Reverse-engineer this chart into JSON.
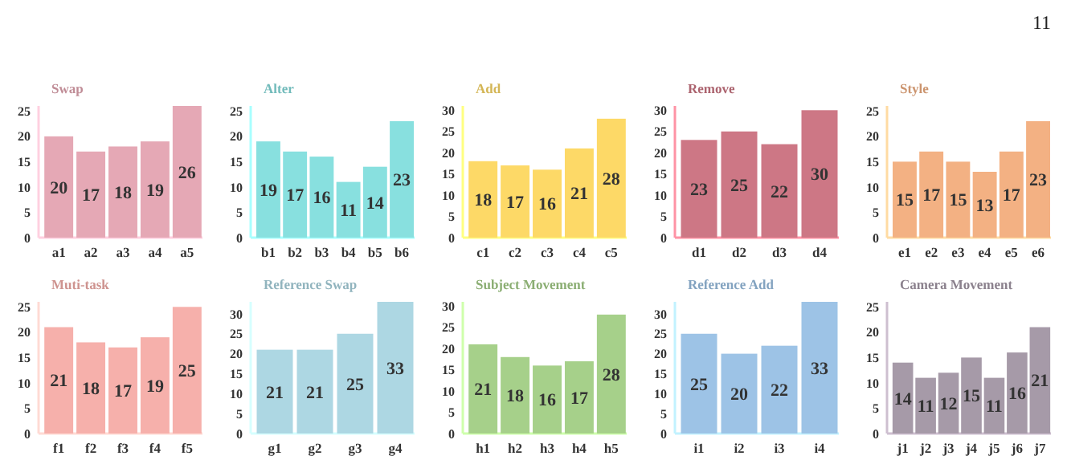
{
  "chart_data": [
    {
      "type": "bar",
      "title": "Swap",
      "categories": [
        "a1",
        "a2",
        "a3",
        "a4",
        "a5"
      ],
      "values": [
        20,
        17,
        18,
        19,
        26
      ],
      "color": "#e5a8b5",
      "ylim": [
        0,
        26
      ],
      "yticks": [
        0,
        5,
        10,
        15,
        20,
        25
      ],
      "data_labels": true,
      "annotations": [
        "11"
      ]
    },
    {
      "type": "bar",
      "title": "Alter",
      "categories": [
        "b1",
        "b2",
        "b3",
        "b4",
        "b5",
        "b6"
      ],
      "values": [
        19,
        17,
        16,
        11,
        14,
        23
      ],
      "color": "#88e0df",
      "ylim": [
        0,
        26
      ],
      "yticks": [
        0,
        5,
        10,
        15,
        20,
        25
      ],
      "data_labels": true
    },
    {
      "type": "bar",
      "title": "Add",
      "categories": [
        "c1",
        "c2",
        "c3",
        "c4",
        "c5"
      ],
      "values": [
        18,
        17,
        16,
        21,
        28
      ],
      "color": "#fdd967",
      "ylim": [
        0,
        31
      ],
      "yticks": [
        0,
        5,
        10,
        15,
        20,
        25,
        30
      ],
      "data_labels": true
    },
    {
      "type": "bar",
      "title": "Remove",
      "categories": [
        "d1",
        "d2",
        "d3",
        "d4"
      ],
      "values": [
        23,
        25,
        22,
        30
      ],
      "color": "#cd7785",
      "ylim": [
        0,
        31
      ],
      "yticks": [
        0,
        5,
        10,
        15,
        20,
        25,
        30
      ],
      "data_labels": true
    },
    {
      "type": "bar",
      "title": "Style",
      "categories": [
        "e1",
        "e2",
        "e3",
        "e4",
        "e5",
        "e6"
      ],
      "values": [
        15,
        17,
        15,
        13,
        17,
        23
      ],
      "color": "#f3b183",
      "ylim": [
        0,
        26
      ],
      "yticks": [
        0,
        5,
        10,
        15,
        20,
        25
      ],
      "data_labels": true
    },
    {
      "type": "bar",
      "title": "Muti-task",
      "categories": [
        "f1",
        "f2",
        "f3",
        "f4",
        "f5"
      ],
      "values": [
        21,
        18,
        17,
        19,
        25
      ],
      "color": "#f6b0ab",
      "ylim": [
        0,
        26
      ],
      "yticks": [
        0,
        5,
        10,
        15,
        20,
        25
      ],
      "data_labels": true
    },
    {
      "type": "bar",
      "title": "Reference Swap",
      "categories": [
        "g1",
        "g2",
        "g3",
        "g4"
      ],
      "values": [
        21,
        21,
        25,
        33
      ],
      "color": "#add7e3",
      "ylim": [
        0,
        33
      ],
      "yticks": [
        0,
        5,
        10,
        15,
        20,
        25,
        30
      ],
      "data_labels": true
    },
    {
      "type": "bar",
      "title": "Subject Movement",
      "categories": [
        "h1",
        "h2",
        "h3",
        "h4",
        "h5"
      ],
      "values": [
        21,
        18,
        16,
        17,
        28
      ],
      "color": "#a6d08a",
      "ylim": [
        0,
        31
      ],
      "yticks": [
        0,
        5,
        10,
        15,
        20,
        25,
        30
      ],
      "data_labels": true
    },
    {
      "type": "bar",
      "title": "Reference Add",
      "categories": [
        "i1",
        "i2",
        "i3",
        "i4"
      ],
      "values": [
        25,
        20,
        22,
        33
      ],
      "color": "#9dc3e6",
      "ylim": [
        0,
        33
      ],
      "yticks": [
        0,
        5,
        10,
        15,
        20,
        25,
        30
      ],
      "data_labels": true
    },
    {
      "type": "bar",
      "title": "Camera Movement",
      "categories": [
        "j1",
        "j2",
        "j3",
        "j4",
        "j5",
        "j6",
        "j7"
      ],
      "values": [
        14,
        11,
        12,
        15,
        11,
        16,
        21
      ],
      "color": "#a69aa8",
      "ylim": [
        0,
        26
      ],
      "yticks": [
        0,
        5,
        10,
        15,
        20,
        25
      ],
      "data_labels": true
    }
  ]
}
